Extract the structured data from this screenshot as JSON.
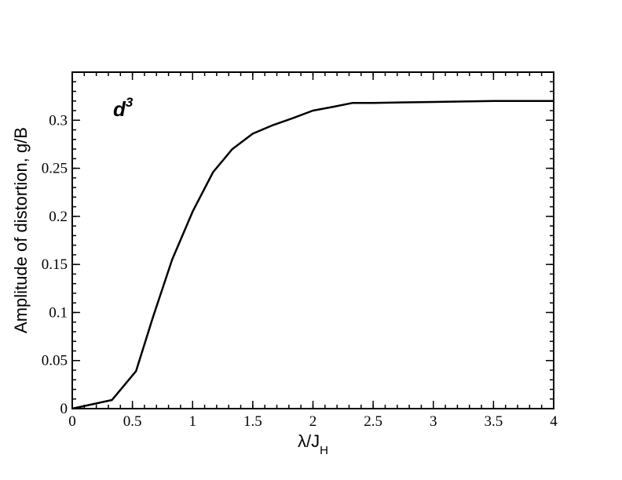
{
  "chart_data": {
    "type": "line",
    "xlabel": {
      "main": "λ/J",
      "sub": "H"
    },
    "ylabel": "Amplitude of distortion, g/B",
    "annotation": {
      "main": "d",
      "sup": "3"
    },
    "xlim": [
      0,
      4
    ],
    "ylim": [
      0,
      0.35
    ],
    "x_ticks": [
      "0",
      "0.5",
      "1",
      "1.5",
      "2",
      "2.5",
      "3",
      "3.5",
      "4"
    ],
    "y_ticks": [
      "0",
      "0.05",
      "0.1",
      "0.15",
      "0.2",
      "0.25",
      "0.3"
    ],
    "x_tick_values": [
      0,
      0.5,
      1,
      1.5,
      2,
      2.5,
      3,
      3.5,
      4
    ],
    "y_tick_values": [
      0,
      0.05,
      0.1,
      0.15,
      0.2,
      0.25,
      0.3
    ],
    "x_minor_step": 0.1,
    "y_minor_step": 0.01,
    "grid": false,
    "line_color": "#000000",
    "series": [
      {
        "x": [
          0,
          0.33,
          0.53,
          0.67,
          0.83,
          1.0,
          1.17,
          1.33,
          1.5,
          1.67,
          1.83,
          2.0,
          2.17,
          2.33,
          2.5,
          3.0,
          3.5,
          4.0
        ],
        "y": [
          0,
          0.009,
          0.039,
          0.095,
          0.155,
          0.205,
          0.246,
          0.27,
          0.286,
          0.295,
          0.302,
          0.31,
          0.314,
          0.318,
          0.318,
          0.319,
          0.32,
          0.32
        ]
      }
    ]
  }
}
